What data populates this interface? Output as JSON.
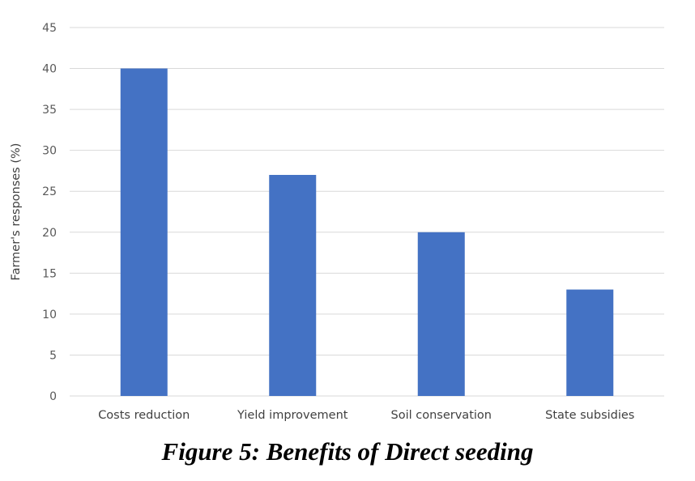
{
  "chart_data": {
    "type": "bar",
    "categories": [
      "Costs reduction",
      "Yield improvement",
      "Soil conservation",
      "State subsidies"
    ],
    "values": [
      40,
      27,
      20,
      13
    ],
    "title": "",
    "xlabel": "",
    "ylabel": "Farmer's responses (%)",
    "ylim": [
      0,
      45
    ],
    "yticks": [
      0,
      5,
      10,
      15,
      20,
      25,
      30,
      35,
      40,
      45
    ],
    "grid": true,
    "legend": "none",
    "bar_color": "#4472C4",
    "grid_color": "#D9D9D9"
  },
  "caption": "Figure 5: Benefits of Direct seeding"
}
